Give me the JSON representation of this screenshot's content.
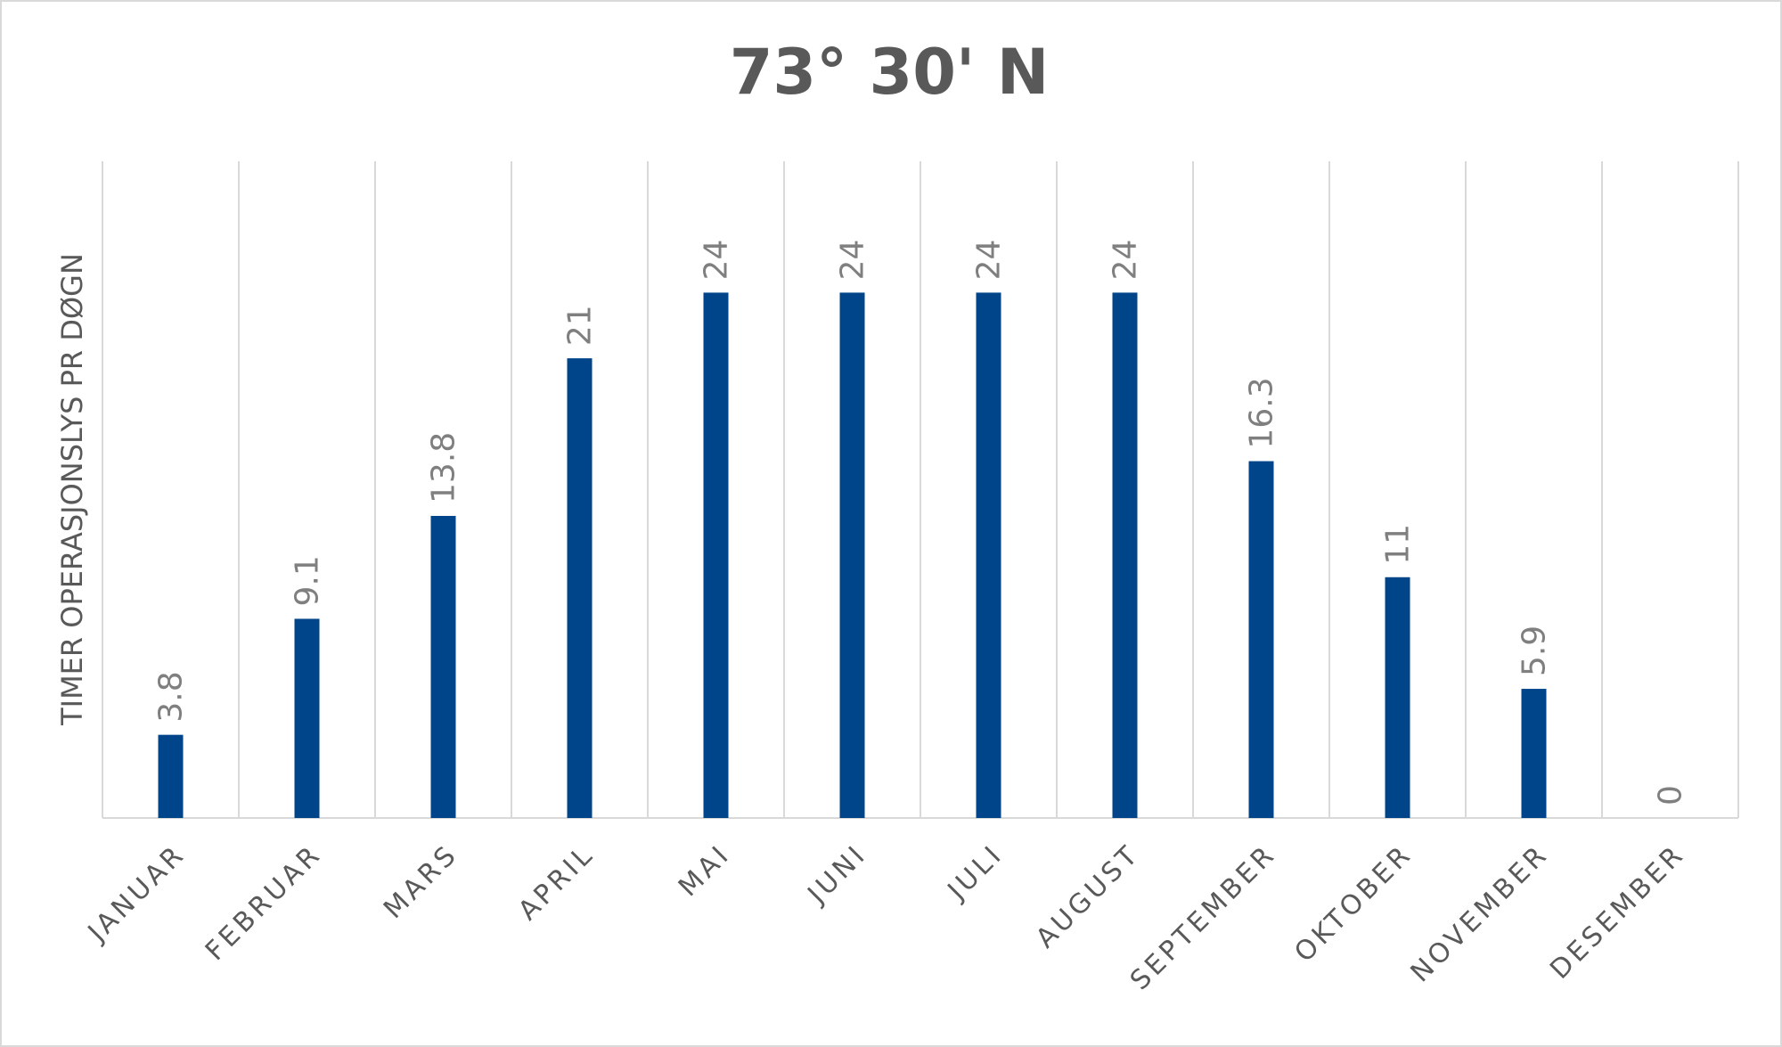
{
  "chart_data": {
    "type": "bar",
    "title": "73° 30' N",
    "y_label": "TIMER OPERASJONSLYS PR DØGN",
    "categories": [
      "JANUAR",
      "FEBRUAR",
      "MARS",
      "APRIL",
      "MAI",
      "JUNI",
      "JULI",
      "AUGUST",
      "SEPTEMBER",
      "OKTOBER",
      "NOVEMBER",
      "DESEMBER"
    ],
    "values": [
      3.8,
      9.1,
      13.8,
      21,
      24,
      24,
      24,
      24,
      16.3,
      11,
      5.9,
      0
    ],
    "color": "#004589",
    "ylim": [
      0,
      30
    ],
    "grid": true
  }
}
